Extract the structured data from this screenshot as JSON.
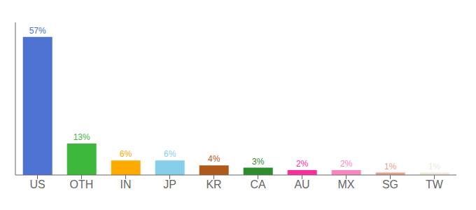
{
  "chart_data": {
    "type": "bar",
    "categories": [
      "US",
      "OTH",
      "IN",
      "JP",
      "KR",
      "CA",
      "AU",
      "MX",
      "SG",
      "TW"
    ],
    "values": [
      57,
      13,
      6,
      6,
      4,
      3,
      2,
      2,
      1,
      1
    ],
    "value_labels": [
      "57%",
      "13%",
      "6%",
      "6%",
      "4%",
      "3%",
      "2%",
      "2%",
      "1%",
      "1%"
    ],
    "colors": [
      "#4d72d1",
      "#3db83d",
      "#ffaa00",
      "#87ceeb",
      "#b05a1a",
      "#2d8c2d",
      "#ff2da0",
      "#ff85c0",
      "#e8a090",
      "#f0ead8"
    ],
    "ylim": [
      0,
      63
    ],
    "data_labels": true,
    "tick_labels": "x",
    "grid": false
  }
}
